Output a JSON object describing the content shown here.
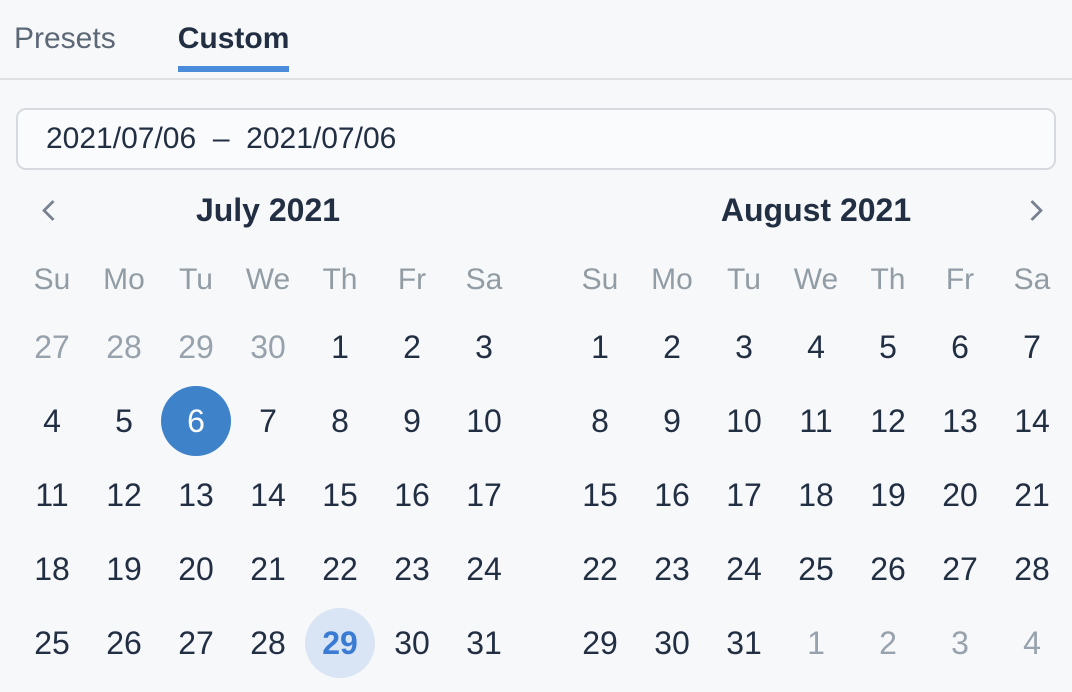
{
  "colors": {
    "accent_blue": "#3e82c9",
    "tab_underline_blue": "#4a8cd9",
    "today_text_blue": "#3a7cd3",
    "today_circle_bg": "#d9e4f4",
    "dark_text": "#222f43",
    "muted_text": "#98a2ad",
    "page_bg": "#f7f8fa"
  },
  "tabs": [
    {
      "label": "Presets",
      "active": false
    },
    {
      "label": "Custom",
      "active": true
    }
  ],
  "date_range_input": {
    "value": "2021/07/06  –  2021/07/06"
  },
  "navigation": {
    "prev_icon": "chevron-left",
    "next_icon": "chevron-right"
  },
  "weekdays": [
    "Su",
    "Mo",
    "Tu",
    "We",
    "Th",
    "Fr",
    "Sa"
  ],
  "months": [
    {
      "title": "July 2021",
      "days": [
        {
          "label": "27",
          "state": "outside"
        },
        {
          "label": "28",
          "state": "outside"
        },
        {
          "label": "29",
          "state": "outside"
        },
        {
          "label": "30",
          "state": "outside"
        },
        {
          "label": "1",
          "state": "default"
        },
        {
          "label": "2",
          "state": "default"
        },
        {
          "label": "3",
          "state": "default"
        },
        {
          "label": "4",
          "state": "default"
        },
        {
          "label": "5",
          "state": "default"
        },
        {
          "label": "6",
          "state": "selected"
        },
        {
          "label": "7",
          "state": "default"
        },
        {
          "label": "8",
          "state": "default"
        },
        {
          "label": "9",
          "state": "default"
        },
        {
          "label": "10",
          "state": "default"
        },
        {
          "label": "11",
          "state": "default"
        },
        {
          "label": "12",
          "state": "default"
        },
        {
          "label": "13",
          "state": "default"
        },
        {
          "label": "14",
          "state": "default"
        },
        {
          "label": "15",
          "state": "default"
        },
        {
          "label": "16",
          "state": "default"
        },
        {
          "label": "17",
          "state": "default"
        },
        {
          "label": "18",
          "state": "default"
        },
        {
          "label": "19",
          "state": "default"
        },
        {
          "label": "20",
          "state": "default"
        },
        {
          "label": "21",
          "state": "default"
        },
        {
          "label": "22",
          "state": "default"
        },
        {
          "label": "23",
          "state": "default"
        },
        {
          "label": "24",
          "state": "default"
        },
        {
          "label": "25",
          "state": "default"
        },
        {
          "label": "26",
          "state": "default"
        },
        {
          "label": "27",
          "state": "default"
        },
        {
          "label": "28",
          "state": "default"
        },
        {
          "label": "29",
          "state": "today"
        },
        {
          "label": "30",
          "state": "default"
        },
        {
          "label": "31",
          "state": "default"
        }
      ]
    },
    {
      "title": "August 2021",
      "days": [
        {
          "label": "1",
          "state": "default"
        },
        {
          "label": "2",
          "state": "default"
        },
        {
          "label": "3",
          "state": "default"
        },
        {
          "label": "4",
          "state": "default"
        },
        {
          "label": "5",
          "state": "default"
        },
        {
          "label": "6",
          "state": "default"
        },
        {
          "label": "7",
          "state": "default"
        },
        {
          "label": "8",
          "state": "default"
        },
        {
          "label": "9",
          "state": "default"
        },
        {
          "label": "10",
          "state": "default"
        },
        {
          "label": "11",
          "state": "default"
        },
        {
          "label": "12",
          "state": "default"
        },
        {
          "label": "13",
          "state": "default"
        },
        {
          "label": "14",
          "state": "default"
        },
        {
          "label": "15",
          "state": "default"
        },
        {
          "label": "16",
          "state": "default"
        },
        {
          "label": "17",
          "state": "default"
        },
        {
          "label": "18",
          "state": "default"
        },
        {
          "label": "19",
          "state": "default"
        },
        {
          "label": "20",
          "state": "default"
        },
        {
          "label": "21",
          "state": "default"
        },
        {
          "label": "22",
          "state": "default"
        },
        {
          "label": "23",
          "state": "default"
        },
        {
          "label": "24",
          "state": "default"
        },
        {
          "label": "25",
          "state": "default"
        },
        {
          "label": "26",
          "state": "default"
        },
        {
          "label": "27",
          "state": "default"
        },
        {
          "label": "28",
          "state": "default"
        },
        {
          "label": "29",
          "state": "default"
        },
        {
          "label": "30",
          "state": "default"
        },
        {
          "label": "31",
          "state": "default"
        },
        {
          "label": "1",
          "state": "outside"
        },
        {
          "label": "2",
          "state": "outside"
        },
        {
          "label": "3",
          "state": "outside"
        },
        {
          "label": "4",
          "state": "outside"
        }
      ]
    }
  ]
}
